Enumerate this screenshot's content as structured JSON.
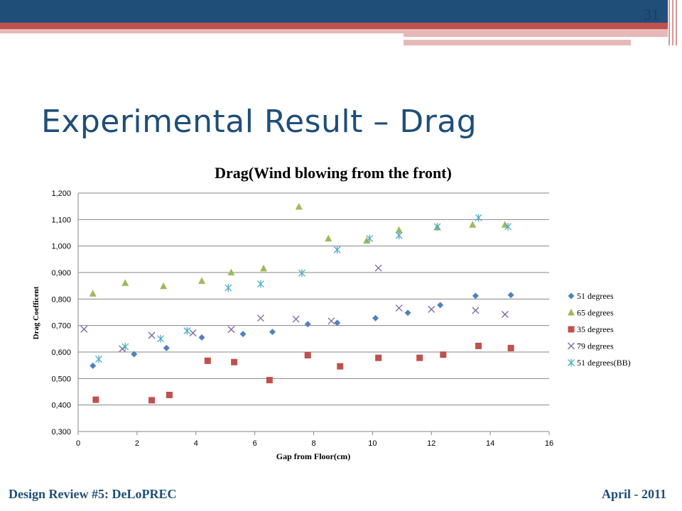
{
  "slide": {
    "number": "31",
    "title": "Experimental Result – Drag",
    "footer_left": "Design Review #5: DeLoPREC",
    "footer_right": "April - 2011"
  },
  "colors": {
    "header_blue": "#1f4e79",
    "header_red": "#c0504d",
    "header_pink": "#e6b9b8"
  },
  "chart_data": {
    "type": "scatter",
    "title": "Drag(Wind blowing from the front)",
    "xlabel": "Gap from Floor(cm)",
    "ylabel": "Drag Coefficent",
    "xlim": [
      0,
      16
    ],
    "ylim": [
      0.3,
      1.2
    ],
    "x_ticks": [
      "0",
      "2",
      "4",
      "6",
      "8",
      "10",
      "12",
      "14",
      "16"
    ],
    "y_ticks": [
      "0,300",
      "0,400",
      "0,500",
      "0,600",
      "0,700",
      "0,800",
      "0,900",
      "1,000",
      "1,100",
      "1,200"
    ],
    "grid": true,
    "legend_position": "right",
    "series": [
      {
        "name": "51 degrees",
        "marker": "diamond",
        "color": "#4f81bd",
        "points": [
          [
            0.5,
            0.548
          ],
          [
            1.9,
            0.592
          ],
          [
            3.0,
            0.615
          ],
          [
            4.2,
            0.655
          ],
          [
            5.6,
            0.668
          ],
          [
            6.6,
            0.676
          ],
          [
            7.8,
            0.705
          ],
          [
            8.8,
            0.71
          ],
          [
            10.1,
            0.728
          ],
          [
            11.2,
            0.748
          ],
          [
            12.3,
            0.777
          ],
          [
            13.5,
            0.812
          ],
          [
            14.7,
            0.815
          ]
        ]
      },
      {
        "name": "65 degrees",
        "marker": "triangle",
        "color": "#9bbb59",
        "points": [
          [
            0.5,
            0.82
          ],
          [
            1.6,
            0.86
          ],
          [
            2.9,
            0.848
          ],
          [
            4.2,
            0.868
          ],
          [
            5.2,
            0.9
          ],
          [
            6.3,
            0.915
          ],
          [
            7.5,
            1.148
          ],
          [
            8.5,
            1.028
          ],
          [
            9.8,
            1.02
          ],
          [
            10.9,
            1.06
          ],
          [
            12.2,
            1.07
          ],
          [
            13.4,
            1.08
          ],
          [
            14.5,
            1.08
          ]
        ]
      },
      {
        "name": "35 degrees",
        "marker": "square",
        "color": "#c0504d",
        "points": [
          [
            0.6,
            0.42
          ],
          [
            2.5,
            0.418
          ],
          [
            3.1,
            0.438
          ],
          [
            4.4,
            0.567
          ],
          [
            5.3,
            0.562
          ],
          [
            6.5,
            0.494
          ],
          [
            7.8,
            0.588
          ],
          [
            8.9,
            0.546
          ],
          [
            10.2,
            0.578
          ],
          [
            11.6,
            0.578
          ],
          [
            12.4,
            0.59
          ],
          [
            13.6,
            0.623
          ],
          [
            14.7,
            0.615
          ]
        ]
      },
      {
        "name": "79 degrees",
        "marker": "x",
        "color": "#8064a2",
        "points": [
          [
            0.2,
            0.686
          ],
          [
            1.5,
            0.612
          ],
          [
            2.5,
            0.663
          ],
          [
            3.9,
            0.672
          ],
          [
            5.2,
            0.685
          ],
          [
            6.2,
            0.728
          ],
          [
            7.4,
            0.724
          ],
          [
            8.6,
            0.717
          ],
          [
            10.2,
            0.917
          ],
          [
            10.9,
            0.766
          ],
          [
            12.0,
            0.761
          ],
          [
            13.5,
            0.757
          ],
          [
            14.5,
            0.742
          ]
        ]
      },
      {
        "name": "51 degrees(BB)",
        "marker": "asterisk",
        "color": "#4bacc6",
        "points": [
          [
            0.7,
            0.573
          ],
          [
            1.6,
            0.62
          ],
          [
            2.8,
            0.65
          ],
          [
            3.7,
            0.68
          ],
          [
            5.1,
            0.842
          ],
          [
            6.2,
            0.857
          ],
          [
            7.6,
            0.898
          ],
          [
            8.8,
            0.986
          ],
          [
            9.9,
            1.028
          ],
          [
            10.9,
            1.04
          ],
          [
            12.2,
            1.073
          ],
          [
            13.6,
            1.107
          ],
          [
            14.6,
            1.073
          ]
        ]
      }
    ]
  }
}
